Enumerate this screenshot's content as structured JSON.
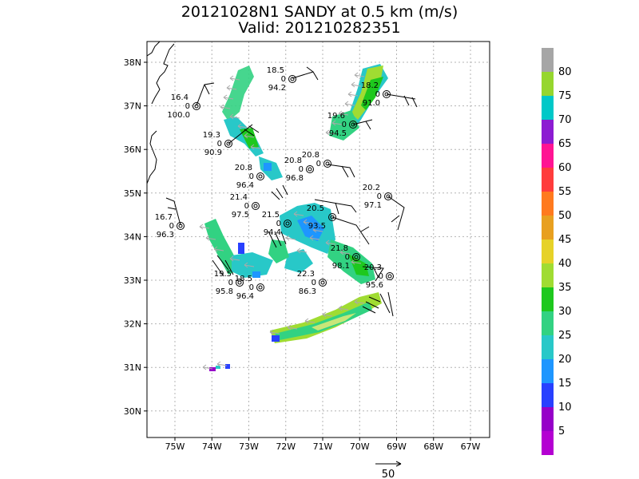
{
  "title": {
    "line1": "20121028N1 SANDY at 0.5 km (m/s)",
    "line2": "Valid: 201210282351"
  },
  "axes": {
    "lon_labels": [
      "75W",
      "74W",
      "73W",
      "72W",
      "71W",
      "70W",
      "69W",
      "68W",
      "67W"
    ],
    "lat_labels": [
      "38N",
      "37N",
      "36N",
      "35N",
      "34N",
      "33N",
      "32N",
      "31N",
      "30N"
    ]
  },
  "colorbar": {
    "labels": [
      "80",
      "75",
      "70",
      "65",
      "60",
      "55",
      "50",
      "45",
      "40",
      "35",
      "30",
      "25",
      "20",
      "15",
      "10",
      "5"
    ],
    "colors": [
      "#a6a6a6",
      "#96d62e",
      "#00c8c8",
      "#8c1cd2",
      "#ff1493",
      "#ff3c3c",
      "#ff7a1e",
      "#e8a020",
      "#e6d228",
      "#a0dc32",
      "#1ec81e",
      "#32d282",
      "#28c8c8",
      "#1e96ff",
      "#2840ff",
      "#9600c8",
      "#b400d2"
    ]
  },
  "stations": [
    {
      "id": "s1",
      "top": "18.5",
      "mid": "0",
      "bot": "94.2"
    },
    {
      "id": "s2",
      "top": "18.2",
      "mid": "0",
      "bot": "91.0"
    },
    {
      "id": "s3",
      "top": "16.4",
      "mid": "0",
      "bot": "100.0"
    },
    {
      "id": "s4",
      "top": "19.6",
      "mid": "0",
      "bot": "94.5"
    },
    {
      "id": "s5",
      "top": "19.3",
      "mid": "0",
      "bot": "90.9"
    },
    {
      "id": "s6",
      "top": "20.8",
      "mid": "0",
      "bot": ""
    },
    {
      "id": "s7",
      "top": "20.8",
      "mid": "0",
      "bot": "96.8"
    },
    {
      "id": "s8",
      "top": "20.8",
      "mid": "0",
      "bot": "96.4"
    },
    {
      "id": "s9",
      "top": "20.2",
      "mid": "0",
      "bot": "97.1"
    },
    {
      "id": "s10",
      "top": "21.4",
      "mid": "0",
      "bot": "97.5"
    },
    {
      "id": "s11",
      "top": "21.5",
      "mid": "0",
      "bot": "94.4"
    },
    {
      "id": "s12",
      "top": "20.5",
      "mid": "",
      "bot": "93.5"
    },
    {
      "id": "s13",
      "top": "16.7",
      "mid": "0",
      "bot": "96.3"
    },
    {
      "id": "s14",
      "top": "21.8",
      "mid": "0",
      "bot": "98.1"
    },
    {
      "id": "s15",
      "top": "22.3",
      "mid": "0",
      "bot": "86.3"
    },
    {
      "id": "s16",
      "top": "19.5",
      "mid": "0",
      "bot": "95.8"
    },
    {
      "id": "s17",
      "top": "18.5",
      "mid": "0",
      "bot": "96.4"
    },
    {
      "id": "s18",
      "top": "20.3",
      "mid": "0",
      "bot": "95.6"
    }
  ],
  "scale_vector": {
    "label": "50"
  }
}
